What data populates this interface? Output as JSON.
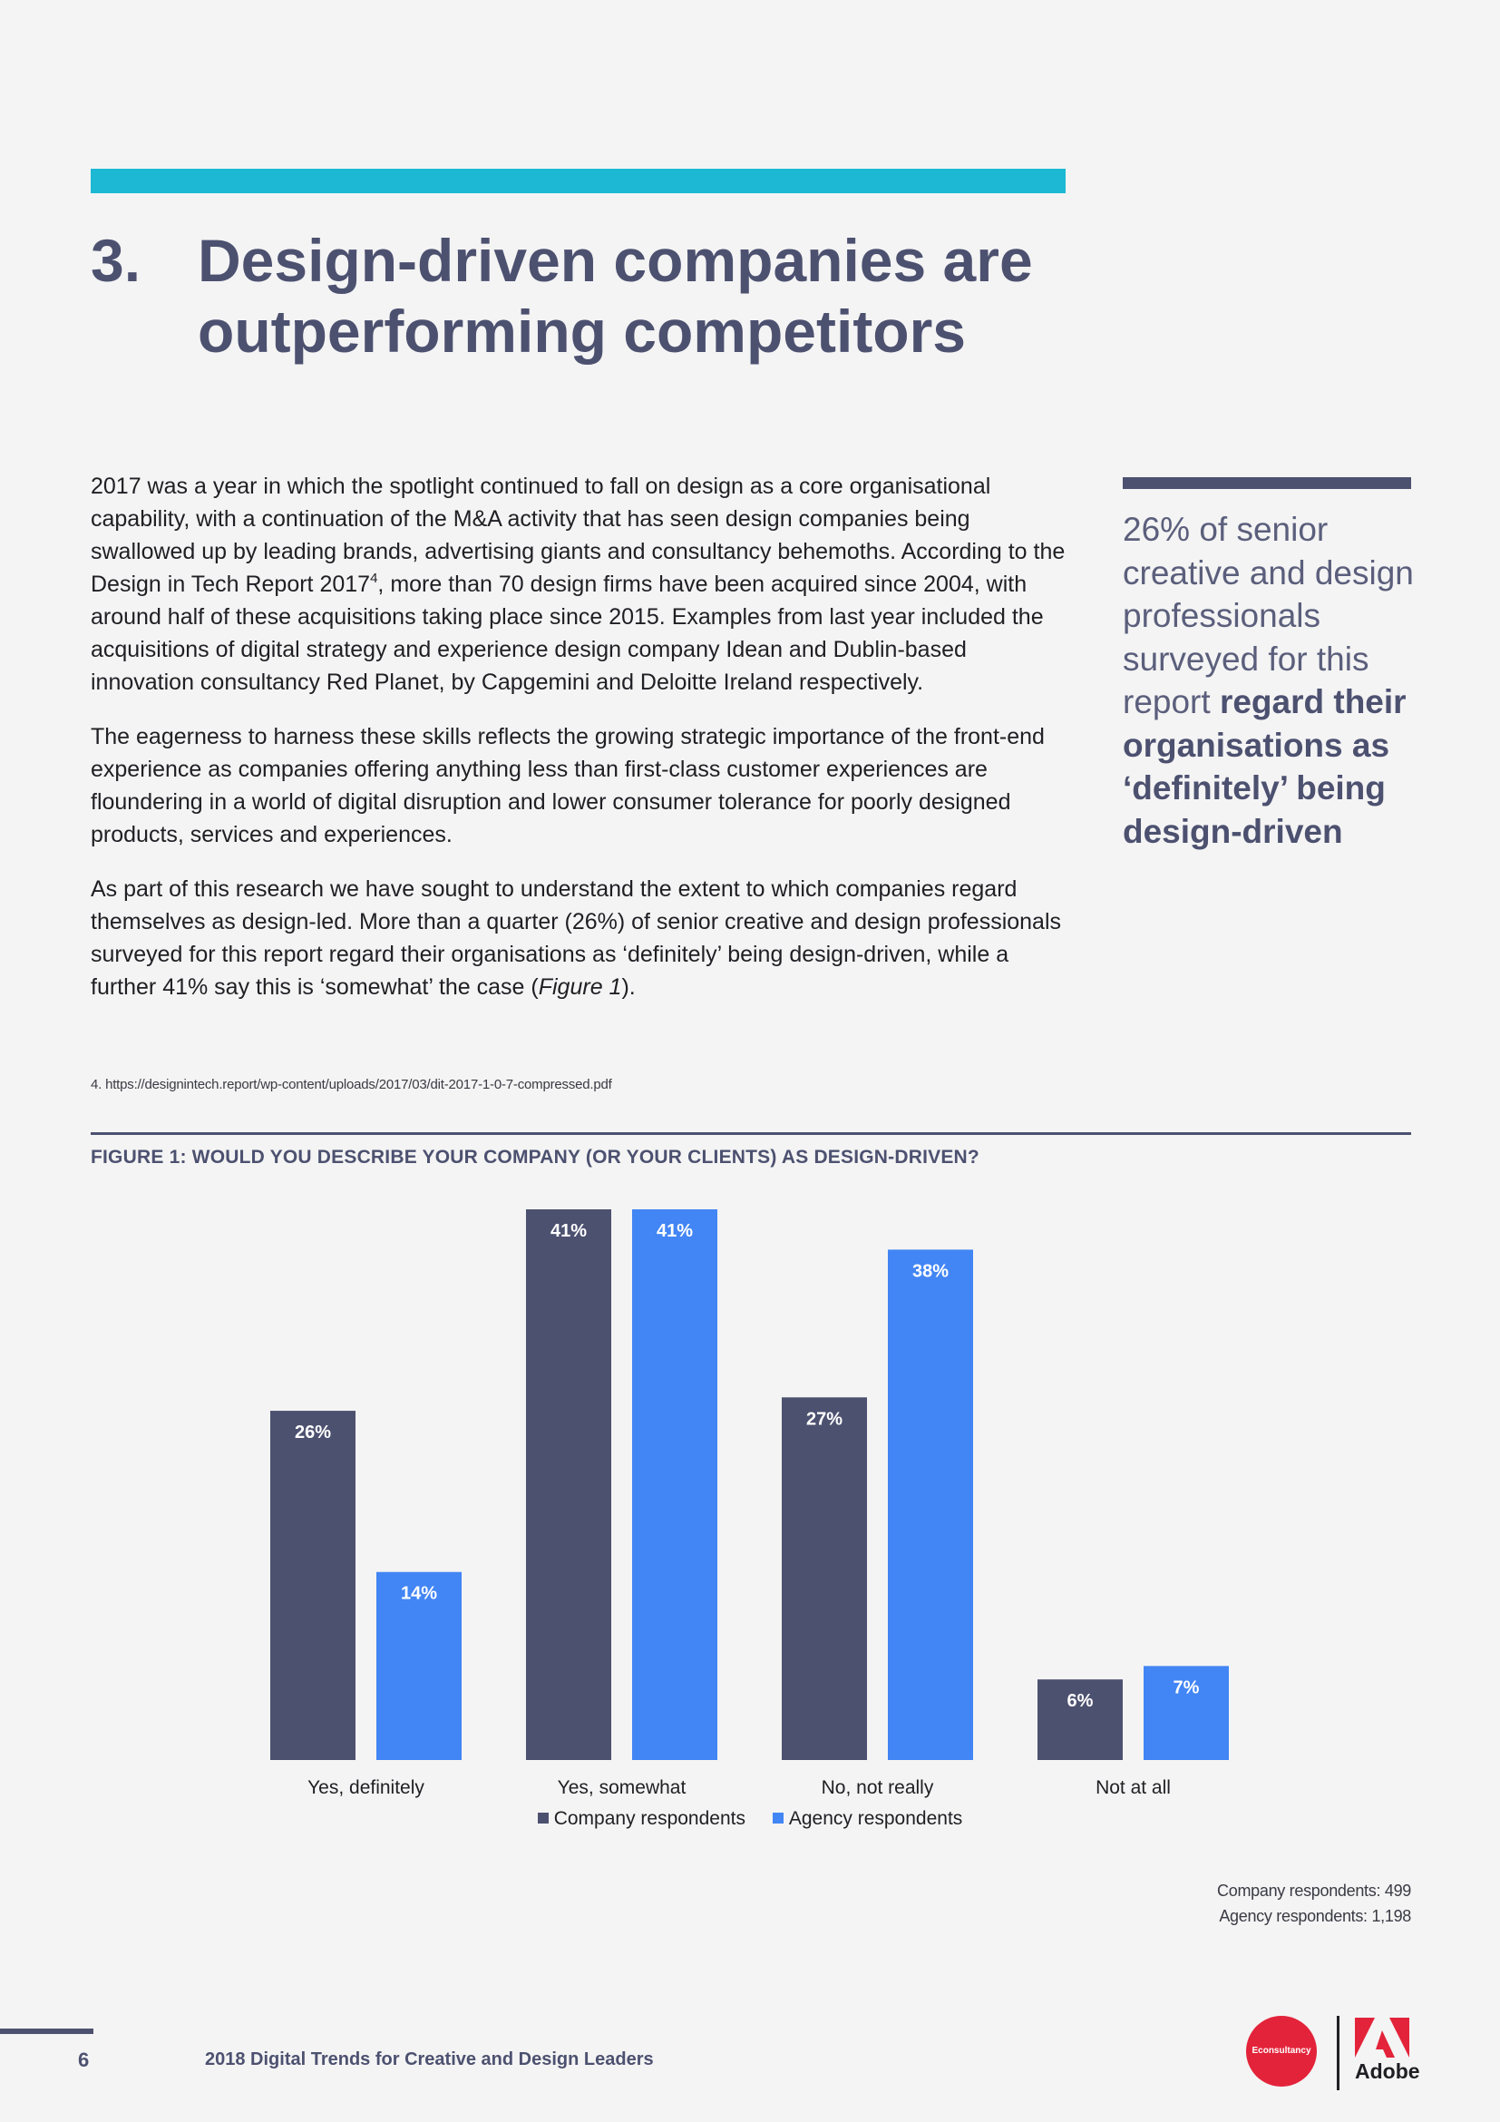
{
  "heading": {
    "number": "3.",
    "title": "Design-driven companies are outperforming competitors"
  },
  "body": {
    "p1_a": "2017 was a year in which the spotlight continued to fall on design as a core organisational capability, with a continuation of the M&A activity that has seen design companies being swallowed up by leading brands, advertising giants and consultancy behemoths. According to the Design in Tech Report 2017",
    "p1_sup": "4",
    "p1_b": ", more than 70 design firms have been acquired since 2004, with around half of these acquisitions taking place since 2015. Examples from last year included the acquisitions of digital strategy and experience design company Idean and Dublin-based innovation consultancy Red Planet, by Capgemini and Deloitte Ireland respectively.",
    "p2": "The eagerness to harness these skills reflects the growing strategic importance of the front-end experience as companies offering anything less than first-class customer experiences are floundering in a world of digital disruption and lower consumer tolerance for poorly designed products, services and experiences.",
    "p3_a": "As part of this research we have sought to understand the extent to which companies regard themselves as design-led. More than a quarter (26%) of senior creative and design professionals surveyed for this report regard their organisations as ‘definitely’ being design-driven, while a further 41% say this is ‘somewhat’ the case (",
    "p3_em": "Figure 1",
    "p3_b": ")."
  },
  "pull_quote": {
    "plain": "26% of senior creative and design professionals surveyed for this report ",
    "bold": "regard their organisations as ‘definitely’ being design-driven"
  },
  "footnote": "4.   https://designintech.report/wp-content/uploads/2017/03/dit-2017-1-0-7-compressed.pdf",
  "figure": {
    "title": "FIGURE 1: WOULD YOU DESCRIBE YOUR COMPANY (OR YOUR CLIENTS) AS DESIGN-DRIVEN?",
    "respondents": [
      "Company respondents: 499",
      "Agency respondents: 1,198"
    ]
  },
  "chart_data": {
    "type": "bar",
    "categories": [
      "Yes, definitely",
      "Yes, somewhat",
      "No, not really",
      "Not at all"
    ],
    "series": [
      {
        "name": "Company respondents",
        "values": [
          26,
          41,
          27,
          6
        ],
        "color": "#4d5170"
      },
      {
        "name": "Agency respondents",
        "values": [
          14,
          41,
          38,
          7
        ],
        "color": "#4285f4"
      }
    ],
    "value_suffix": "%",
    "title": "FIGURE 1: WOULD YOU DESCRIBE YOUR COMPANY (OR YOUR CLIENTS) AS DESIGN-DRIVEN?",
    "xlabel": "",
    "ylabel": "",
    "ylim": [
      0,
      41
    ],
    "grid": false,
    "legend": "bottom-center"
  },
  "footer": {
    "page_number": "6",
    "title": "2018 Digital Trends for Creative and Design Leaders",
    "logo_econsultancy": "Econsultancy",
    "logo_adobe": "Adobe"
  },
  "colors": {
    "accent": "#1cb8d4",
    "navy": "#4d5170",
    "blue": "#4285f4",
    "red": "#e3233a"
  }
}
